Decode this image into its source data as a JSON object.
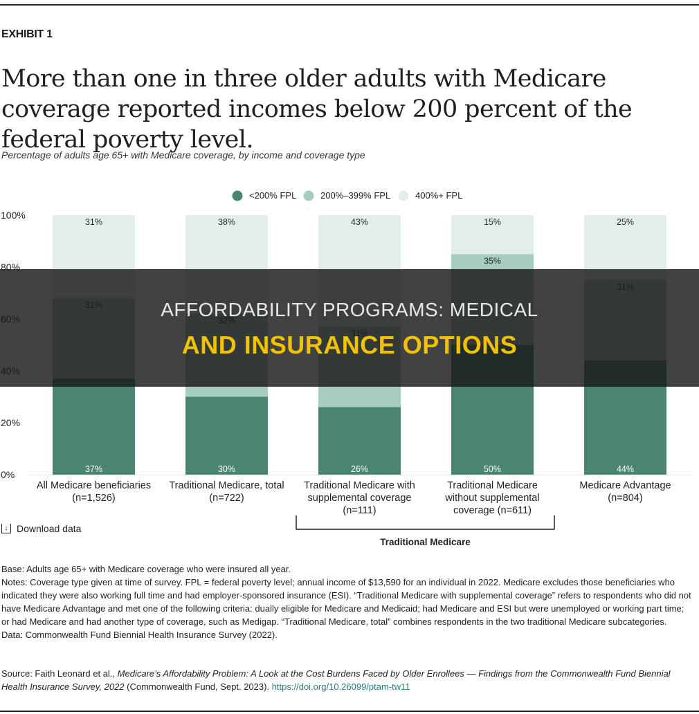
{
  "exhibit_label": "EXHIBIT 1",
  "headline": "More than one in three older adults with Medicare coverage reported incomes below 200 percent of the federal poverty level.",
  "subtitle": "Percentage of adults age 65+ with Medicare coverage, by income and coverage type",
  "download_label": "Download data",
  "colors": {
    "low": "#4a8472",
    "mid": "#a7cdc0",
    "high": "#e3eeea"
  },
  "chart_data": {
    "type": "bar",
    "stacked": true,
    "ylim": [
      0,
      100
    ],
    "y_ticks": [
      "0%",
      "20%",
      "40%",
      "60%",
      "80%",
      "100%"
    ],
    "legend_position": "top-center",
    "grid": false,
    "categories": [
      [
        "All Medicare beneficiaries",
        "(n=1,526)"
      ],
      [
        "Traditional Medicare, total",
        "(n=722)"
      ],
      [
        "Traditional Medicare with",
        "supplemental coverage",
        "(n=111)"
      ],
      [
        "Traditional Medicare",
        "without supplemental",
        "coverage (n=611)"
      ],
      [
        "Medicare Advantage",
        "(n=804)"
      ]
    ],
    "series": [
      {
        "name": "<200% FPL",
        "values": [
          37,
          30,
          26,
          50,
          44
        ],
        "labels": [
          "37%",
          "30%",
          "26%",
          "50%",
          "44%"
        ]
      },
      {
        "name": "200%–399% FPL",
        "values": [
          31,
          32,
          31,
          35,
          31
        ],
        "labels": [
          "31%",
          "32%",
          "31%",
          "35%",
          "31%"
        ]
      },
      {
        "name": "400%+ FPL",
        "values": [
          31,
          38,
          43,
          15,
          25
        ],
        "labels": [
          "31%",
          "38%",
          "43%",
          "15%",
          "25%"
        ]
      }
    ],
    "group_bracket": {
      "label": "Traditional Medicare",
      "from_category": 2,
      "to_category": 3
    }
  },
  "notes": {
    "base": "Base: Adults age 65+ with Medicare coverage who were insured all year.",
    "notes": "Notes: Coverage type given at time of survey. FPL = federal poverty level; annual income of $13,590 for an individual in 2022. Medicare excludes those beneficiaries who indicated they were also working full time and had employer-sponsored insurance (ESI). “Traditional Medicare with supplemental coverage” refers to respondents who did not have Medicare Advantage and met one of the following criteria: dually eligible for Medicare and Medicaid; had Medicare and ESI but were unemployed or working part time; or had Medicare and had another type of coverage, such as Medigap. “Traditional Medicare, total” combines respondents in the two traditional Medicare subcategories.",
    "data": "Data: Commonwealth Fund Biennial Health Insurance Survey (2022)."
  },
  "source": {
    "prefix": "Source: Faith Leonard et al., ",
    "title": "Medicare’s Affordability Problem: A Look at the Cost Burdens Faced by Older Enrollees — Findings from the Commonwealth Fund Biennial Health Insurance Survey, 2022",
    "suffix": " (Commonwealth Fund, Sept. 2023). ",
    "link": "https://doi.org/10.26099/ptam-tw11"
  },
  "banner": {
    "line1": "AFFORDABILITY PROGRAMS: MEDICAL",
    "line2": "AND INSURANCE OPTIONS"
  }
}
